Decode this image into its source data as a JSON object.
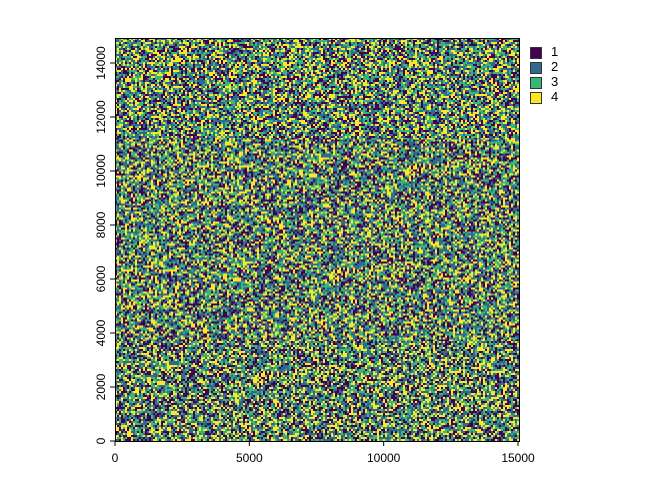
{
  "chart_data": {
    "type": "heatmap",
    "title": "",
    "xlabel": "",
    "ylabel": "",
    "xlim": [
      0,
      15000
    ],
    "ylim": [
      0,
      15000
    ],
    "x_ticks": [
      "0",
      "5000",
      "10000",
      "15000"
    ],
    "y_ticks": [
      "0",
      "2000",
      "4000",
      "6000",
      "8000",
      "10000",
      "12000",
      "14000"
    ],
    "categories": [
      "1",
      "2",
      "3",
      "4"
    ],
    "colors": [
      "#440154",
      "#31688E",
      "#35B779",
      "#FDE725"
    ],
    "pattern": "random categorical raster",
    "legend_position": "top-right",
    "grid": false
  }
}
